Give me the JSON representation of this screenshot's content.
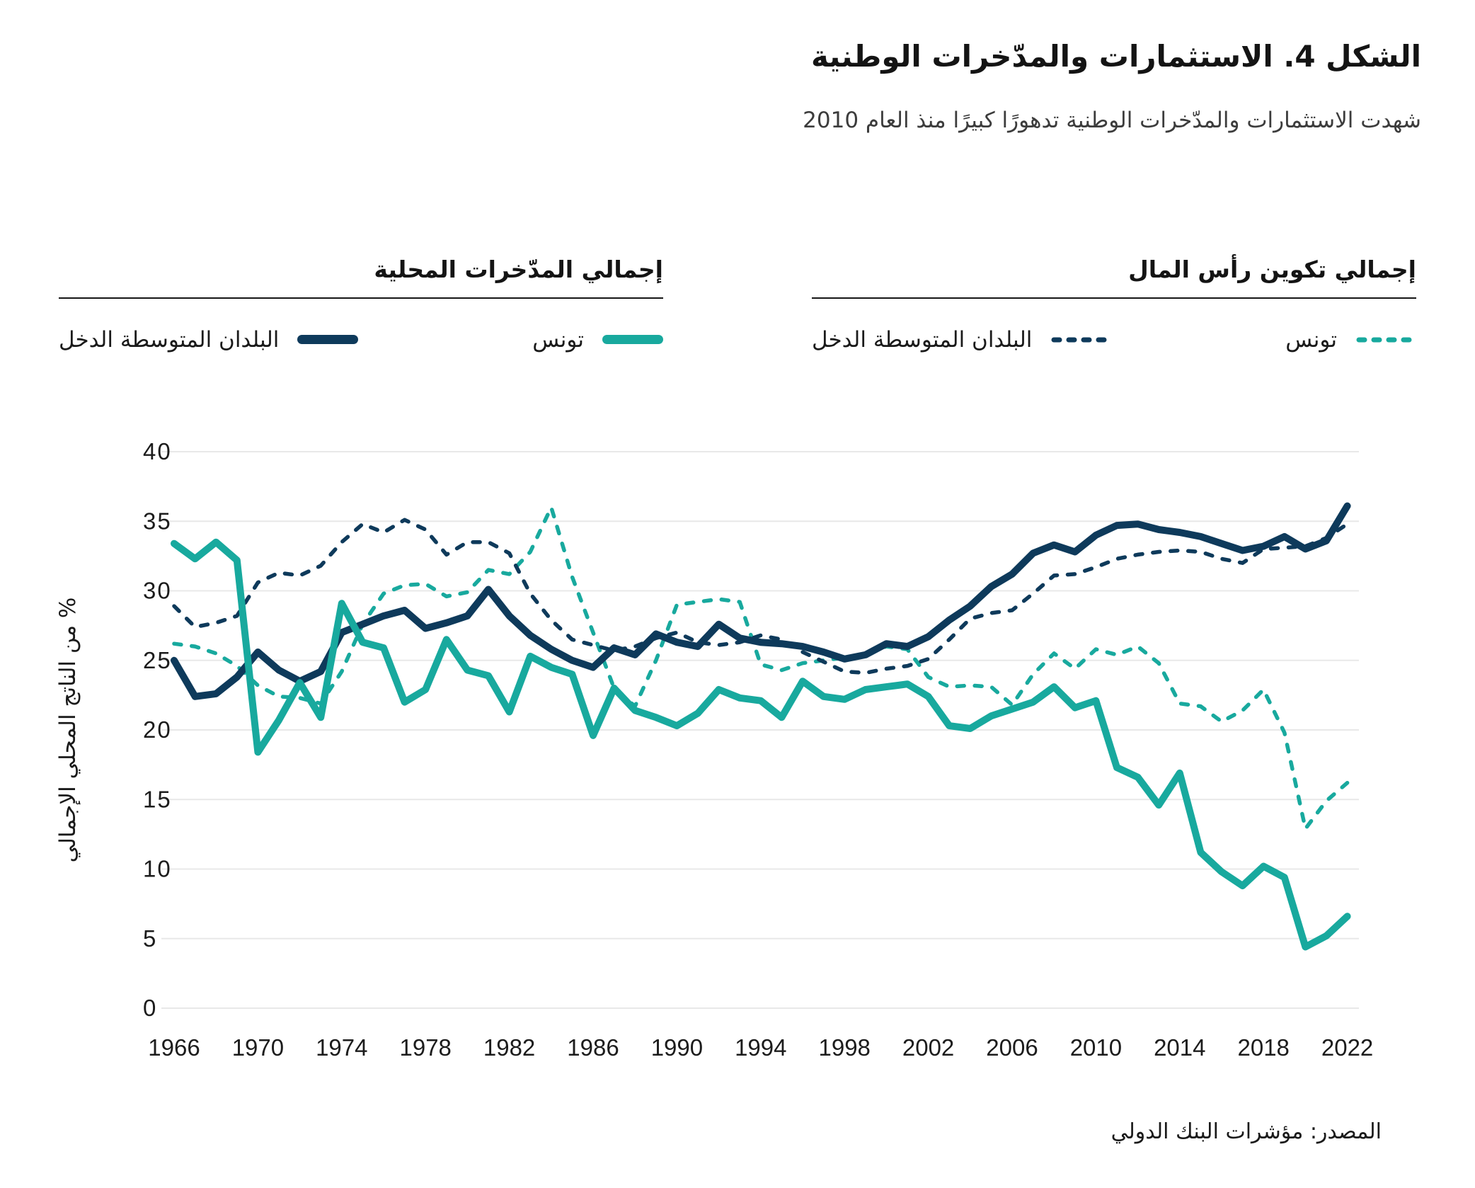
{
  "header": {
    "title": "الشكل 4. الاستثمارات والمدّخرات الوطنية",
    "subtitle": "شهدت الاستثمارات والمدّخرات الوطنية تدهورًا كبيرًا منذ العام 2010"
  },
  "legend": {
    "groups": [
      {
        "title": "إجمالي تكوين رأس المال",
        "entries": [
          {
            "label": "تونس",
            "style": "dashed",
            "color": "#18a99e"
          },
          {
            "label": "البلدان المتوسطة الدخل",
            "style": "dashed",
            "color": "#0e3a5b"
          }
        ]
      },
      {
        "title": "إجمالي المدّخرات المحلية",
        "entries": [
          {
            "label": "تونس",
            "style": "solid",
            "color": "#18a99e"
          },
          {
            "label": "البلدان المتوسطة الدخل",
            "style": "solid",
            "color": "#0e3a5b"
          }
        ]
      }
    ]
  },
  "source": "المصدر: مؤشرات البنك الدولي",
  "chart_data": {
    "type": "line",
    "title": "الشكل 4. الاستثمارات والمدّخرات الوطنية",
    "xlabel": "",
    "ylabel": "% من الناتج المحلي الإجمالي",
    "ylim": [
      0,
      40
    ],
    "yticks": [
      0,
      5,
      10,
      15,
      20,
      25,
      30,
      35,
      40
    ],
    "xticks": [
      1966,
      1970,
      1974,
      1978,
      1982,
      1986,
      1990,
      1994,
      1998,
      2002,
      2006,
      2010,
      2014,
      2018,
      2022
    ],
    "grid": "horizontal",
    "legend_position": "top",
    "colors": {
      "teal": "#18a99e",
      "navy": "#0e3a5b"
    },
    "x": [
      1966,
      1967,
      1968,
      1969,
      1970,
      1971,
      1972,
      1973,
      1974,
      1975,
      1976,
      1977,
      1978,
      1979,
      1980,
      1981,
      1982,
      1983,
      1984,
      1985,
      1986,
      1987,
      1988,
      1989,
      1990,
      1991,
      1992,
      1993,
      1994,
      1995,
      1996,
      1997,
      1998,
      1999,
      2000,
      2001,
      2002,
      2003,
      2004,
      2005,
      2006,
      2007,
      2008,
      2009,
      2010,
      2011,
      2012,
      2013,
      2014,
      2015,
      2016,
      2017,
      2018,
      2019,
      2020,
      2021,
      2022
    ],
    "series": [
      {
        "name": "إجمالي تكوين رأس المال — تونس",
        "group": "إجمالي تكوين رأس المال",
        "country": "تونس",
        "style": "dashed",
        "color": "#18a99e",
        "values": [
          26.2,
          26.0,
          25.5,
          24.6,
          23.2,
          22.4,
          22.3,
          21.9,
          24.2,
          27.6,
          29.8,
          30.4,
          30.5,
          29.6,
          29.9,
          31.5,
          31.2,
          32.8,
          36.0,
          31.0,
          27.0,
          23.0,
          21.7,
          25.0,
          29.0,
          29.2,
          29.4,
          29.2,
          24.7,
          24.3,
          24.8,
          25.0,
          25.2,
          25.5,
          26.0,
          25.8,
          23.8,
          23.1,
          23.2,
          23.1,
          21.8,
          24.0,
          25.5,
          24.4,
          25.8,
          25.4,
          26.0,
          24.8,
          21.9,
          21.7,
          20.6,
          21.4,
          22.9,
          19.8,
          12.9,
          14.9,
          16.2
        ]
      },
      {
        "name": "إجمالي تكوين رأس المال — البلدان المتوسطة الدخل",
        "group": "إجمالي تكوين رأس المال",
        "country": "البلدان المتوسطة الدخل",
        "style": "dashed",
        "color": "#0e3a5b",
        "values": [
          28.9,
          27.4,
          27.7,
          28.2,
          30.6,
          31.3,
          31.1,
          31.8,
          33.5,
          34.8,
          34.2,
          35.1,
          34.4,
          32.6,
          33.5,
          33.5,
          32.7,
          29.8,
          27.9,
          26.5,
          26.1,
          25.7,
          26.0,
          26.6,
          27.0,
          26.3,
          26.1,
          26.3,
          26.8,
          26.5,
          25.6,
          24.9,
          24.2,
          24.1,
          24.4,
          24.6,
          25.1,
          26.5,
          28.0,
          28.4,
          28.6,
          29.8,
          31.1,
          31.2,
          31.7,
          32.3,
          32.6,
          32.8,
          32.9,
          32.8,
          32.3,
          32.0,
          33.0,
          33.1,
          33.2,
          33.8,
          34.8
        ]
      },
      {
        "name": "إجمالي المدّخرات المحلية — البلدان المتوسطة الدخل",
        "group": "إجمالي المدّخرات المحلية",
        "country": "البلدان المتوسطة الدخل",
        "style": "solid",
        "color": "#0e3a5b",
        "values": [
          25.0,
          22.4,
          22.6,
          23.8,
          25.6,
          24.3,
          23.5,
          24.2,
          27.0,
          27.6,
          28.2,
          28.6,
          27.3,
          27.7,
          28.2,
          30.1,
          28.2,
          26.8,
          25.8,
          25.0,
          24.5,
          25.9,
          25.4,
          26.9,
          26.3,
          26.0,
          27.6,
          26.6,
          26.3,
          26.2,
          26.0,
          25.6,
          25.1,
          25.4,
          26.2,
          26.0,
          26.7,
          27.9,
          28.9,
          30.3,
          31.2,
          32.7,
          33.3,
          32.8,
          34.0,
          34.7,
          34.8,
          34.4,
          34.2,
          33.9,
          33.4,
          32.9,
          33.2,
          33.9,
          33.0,
          33.6,
          36.1
        ]
      },
      {
        "name": "إجمالي المدّخرات المحلية — تونس",
        "group": "إجمالي المدّخرات المحلية",
        "country": "تونس",
        "style": "solid",
        "color": "#18a99e",
        "values": [
          33.4,
          32.3,
          33.5,
          32.2,
          18.4,
          20.7,
          23.4,
          20.9,
          29.1,
          26.3,
          25.9,
          22.0,
          22.9,
          26.5,
          24.3,
          23.9,
          21.3,
          25.3,
          24.5,
          24.0,
          19.6,
          23.0,
          21.4,
          20.9,
          20.3,
          21.2,
          22.9,
          22.3,
          22.1,
          20.9,
          23.5,
          22.4,
          22.2,
          22.9,
          23.1,
          23.3,
          22.4,
          20.3,
          20.1,
          21.0,
          21.5,
          22.0,
          23.1,
          21.6,
          22.1,
          17.3,
          16.6,
          14.6,
          16.9,
          11.2,
          9.8,
          8.8,
          10.2,
          9.4,
          4.4,
          5.2,
          6.6
        ]
      }
    ]
  }
}
